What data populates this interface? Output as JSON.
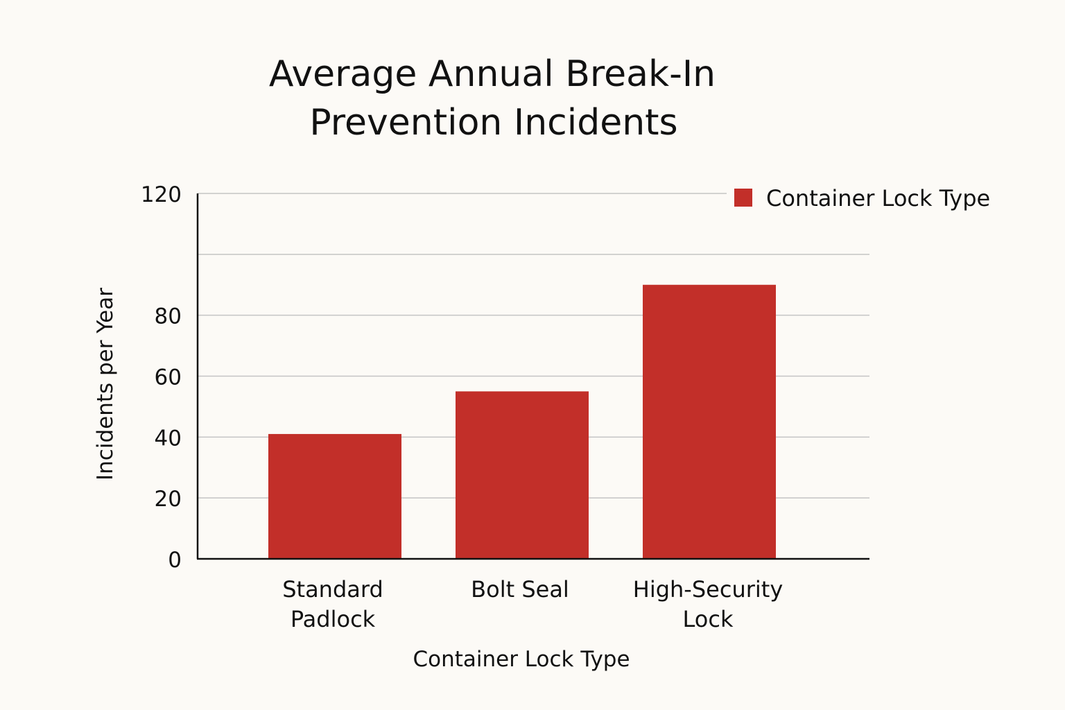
{
  "chart_data": {
    "type": "bar",
    "title": "Average Annual Break-In Prevention Incidents",
    "title_lines": [
      "Average Annual Break-In",
      "Prevention Incidents"
    ],
    "categories": [
      "Standard Padlock",
      "Bolt Seal",
      "High-Security Lock"
    ],
    "category_lines": [
      [
        "Standard",
        "Padlock"
      ],
      [
        "Bolt Seal"
      ],
      [
        "High-Security",
        "Lock"
      ]
    ],
    "series": [
      {
        "name": "Container Lock Type",
        "values": [
          41,
          55,
          90
        ]
      }
    ],
    "xlabel": "Container Lock Type",
    "ylabel": "Incidents per Year",
    "ylim": [
      0,
      120
    ],
    "yticks": [
      0,
      20,
      40,
      60,
      80,
      120
    ],
    "grid": true,
    "legend": {
      "position": "top-right",
      "label": "Container Lock Type"
    },
    "colors": {
      "bar": "#c22f29",
      "background": "#fcfaf6"
    }
  }
}
